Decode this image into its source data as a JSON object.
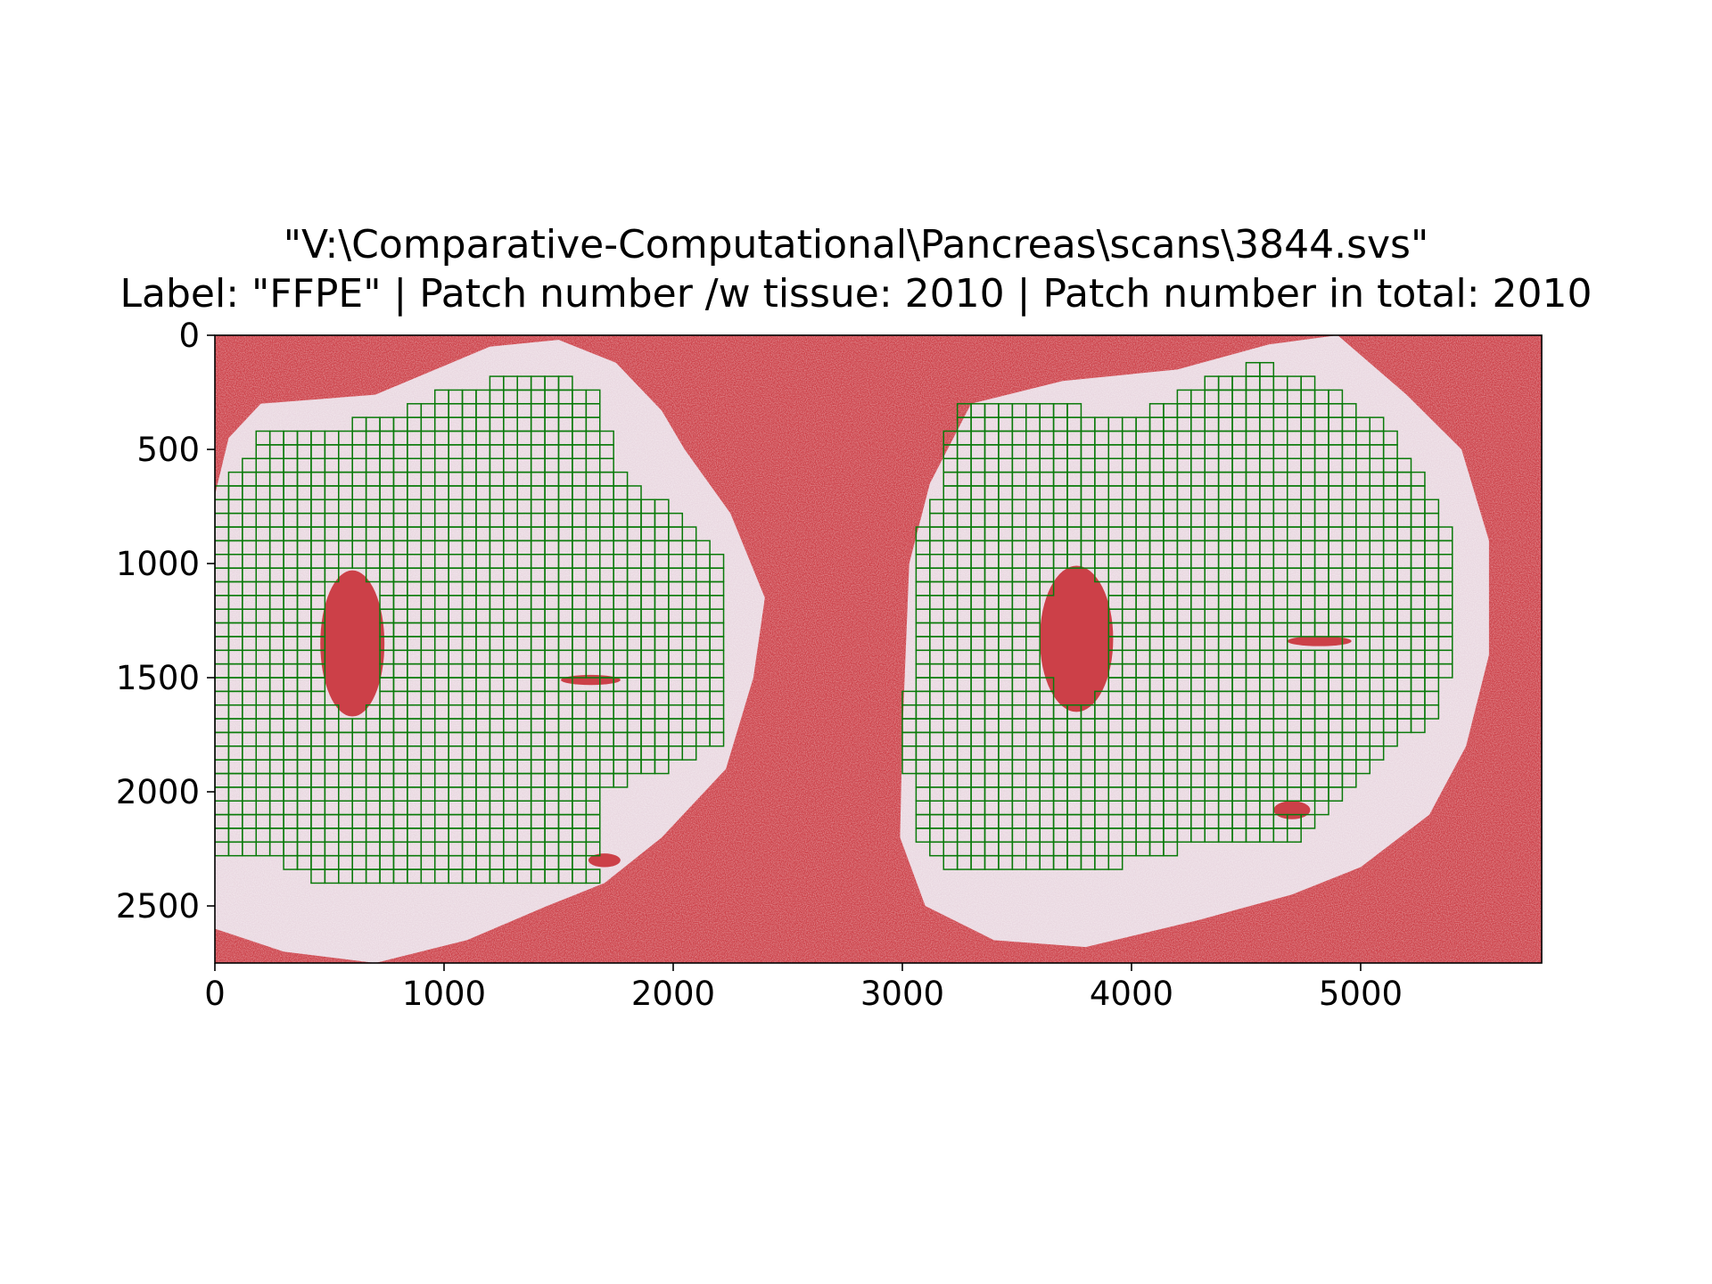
{
  "figure": {
    "title_line1": "\"V:\\Comparative-Computational\\Pancreas\\scans\\3844.svs\"",
    "title_line2": "Label: \"FFPE\" | Patch number /w tissue: 2010 | Patch number in total: 2010"
  },
  "image": {
    "description": "whole slide pancreas scan with background mask and patch grid overlay",
    "background_mask_color": "#cc4048",
    "tissue_color": "#e9d7e0",
    "patch_outline_color": "#0a7a0a"
  },
  "chart_data": {
    "type": "heatmap",
    "title": "",
    "xlim": [
      0,
      5790
    ],
    "ylim": [
      2750,
      0
    ],
    "x_ticks": [
      0,
      1000,
      2000,
      3000,
      4000,
      5000
    ],
    "y_ticks": [
      0,
      500,
      1000,
      1500,
      2000,
      2500
    ],
    "x_tick_labels": [
      "0",
      "1000",
      "2000",
      "3000",
      "4000",
      "5000"
    ],
    "y_tick_labels": [
      "0",
      "500",
      "1000",
      "1500",
      "2000",
      "2500"
    ],
    "patch_size": 60,
    "patches_with_tissue": 2010,
    "patches_total": 2010
  }
}
